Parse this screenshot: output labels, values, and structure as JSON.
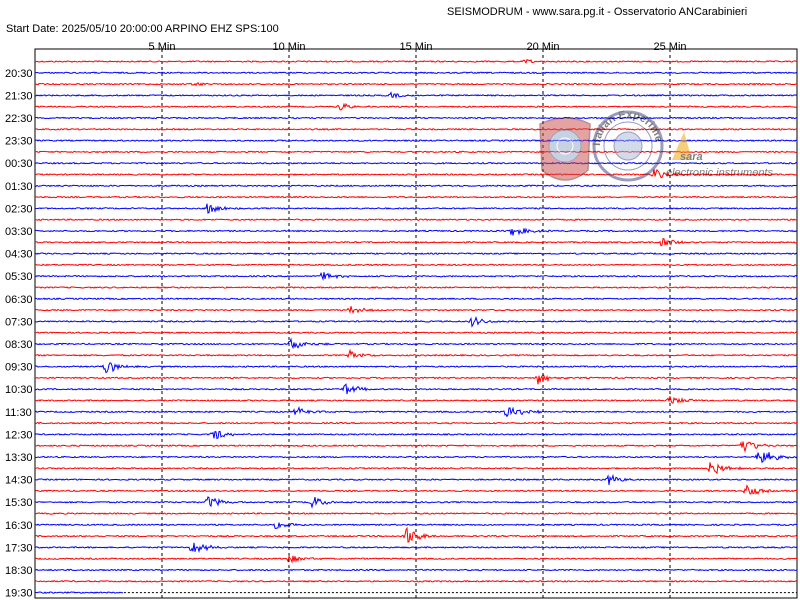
{
  "header": {
    "title": "SEISMODRUM - www.sara.pg.it - Osservatorio ANCarabinieri",
    "start_info": "Start Date: 2025/05/10 20:00:00 ARPINO   EHZ  SPS:100"
  },
  "watermark": {
    "brand": "sara",
    "brand_sub": "electronic instruments",
    "seal_text": "Italian Experimental Seismic Network",
    "brand_color": "#d23a3a"
  },
  "chart_data": {
    "type": "line",
    "x_unit": "minutes",
    "x_range": [
      0,
      30
    ],
    "x_ticks": [
      {
        "value": 5,
        "label": "5 Min"
      },
      {
        "value": 10,
        "label": "10 Min"
      },
      {
        "value": 15,
        "label": "15 Min"
      },
      {
        "value": 20,
        "label": "20 Min"
      },
      {
        "value": 25,
        "label": "25 Min"
      }
    ],
    "row_interval_minutes": 30,
    "current_minute_last_row": 3.5,
    "colors": {
      "red": "#ff0000",
      "blue": "#0000ff",
      "grid": "#000000",
      "paper": "#ffffff"
    },
    "hour_labels": [
      "20:30",
      "21:30",
      "22:30",
      "23:30",
      "00:30",
      "01:30",
      "02:30",
      "03:30",
      "04:30",
      "05:30",
      "06:30",
      "07:30",
      "08:30",
      "09:30",
      "10:30",
      "11:30",
      "12:30",
      "13:30",
      "14:30",
      "15:30",
      "16:30",
      "17:30",
      "18:30",
      "19:30"
    ],
    "traces": [
      {
        "label": null,
        "color": "red"
      },
      {
        "label": "20:30",
        "color": "blue"
      },
      {
        "label": null,
        "color": "red"
      },
      {
        "label": "21:30",
        "color": "blue"
      },
      {
        "label": null,
        "color": "red"
      },
      {
        "label": "22:30",
        "color": "blue"
      },
      {
        "label": null,
        "color": "red"
      },
      {
        "label": "23:30",
        "color": "blue"
      },
      {
        "label": null,
        "color": "red"
      },
      {
        "label": "00:30",
        "color": "blue"
      },
      {
        "label": null,
        "color": "red"
      },
      {
        "label": "01:30",
        "color": "blue"
      },
      {
        "label": null,
        "color": "red"
      },
      {
        "label": "02:30",
        "color": "blue"
      },
      {
        "label": null,
        "color": "red"
      },
      {
        "label": "03:30",
        "color": "blue"
      },
      {
        "label": null,
        "color": "red"
      },
      {
        "label": "04:30",
        "color": "blue"
      },
      {
        "label": null,
        "color": "red"
      },
      {
        "label": "05:30",
        "color": "blue"
      },
      {
        "label": null,
        "color": "red"
      },
      {
        "label": "06:30",
        "color": "blue"
      },
      {
        "label": null,
        "color": "red"
      },
      {
        "label": "07:30",
        "color": "blue"
      },
      {
        "label": null,
        "color": "red"
      },
      {
        "label": "08:30",
        "color": "blue"
      },
      {
        "label": null,
        "color": "red"
      },
      {
        "label": "09:30",
        "color": "blue"
      },
      {
        "label": null,
        "color": "red"
      },
      {
        "label": "10:30",
        "color": "blue"
      },
      {
        "label": null,
        "color": "red"
      },
      {
        "label": "11:30",
        "color": "blue"
      },
      {
        "label": null,
        "color": "red"
      },
      {
        "label": "12:30",
        "color": "blue"
      },
      {
        "label": null,
        "color": "red"
      },
      {
        "label": "13:30",
        "color": "blue"
      },
      {
        "label": null,
        "color": "red"
      },
      {
        "label": "14:30",
        "color": "blue"
      },
      {
        "label": null,
        "color": "red"
      },
      {
        "label": "15:30",
        "color": "blue"
      },
      {
        "label": null,
        "color": "red"
      },
      {
        "label": "16:30",
        "color": "blue"
      },
      {
        "label": null,
        "color": "red"
      },
      {
        "label": "17:30",
        "color": "blue"
      },
      {
        "label": null,
        "color": "red"
      },
      {
        "label": "18:30",
        "color": "blue"
      },
      {
        "label": null,
        "color": "red"
      },
      {
        "label": "19:30",
        "color": "blue"
      }
    ],
    "events": [
      {
        "row": 0,
        "minute": 19.3,
        "amp": 0.5
      },
      {
        "row": 2,
        "minute": 6.2,
        "amp": 0.6
      },
      {
        "row": 3,
        "minute": 14.0,
        "amp": 0.8
      },
      {
        "row": 4,
        "minute": 12.0,
        "amp": 0.9
      },
      {
        "row": 10,
        "minute": 24.4,
        "amp": 1.4
      },
      {
        "row": 13,
        "minute": 6.8,
        "amp": 1.3
      },
      {
        "row": 15,
        "minute": 18.8,
        "amp": 1.4
      },
      {
        "row": 16,
        "minute": 24.7,
        "amp": 1.2
      },
      {
        "row": 19,
        "minute": 11.3,
        "amp": 1.0
      },
      {
        "row": 22,
        "minute": 12.4,
        "amp": 1.0
      },
      {
        "row": 23,
        "minute": 17.2,
        "amp": 1.2
      },
      {
        "row": 25,
        "minute": 10.1,
        "amp": 1.4
      },
      {
        "row": 26,
        "minute": 12.4,
        "amp": 1.0
      },
      {
        "row": 27,
        "minute": 2.8,
        "amp": 1.6
      },
      {
        "row": 28,
        "minute": 19.8,
        "amp": 1.5
      },
      {
        "row": 29,
        "minute": 12.2,
        "amp": 1.4
      },
      {
        "row": 30,
        "minute": 25.0,
        "amp": 1.2
      },
      {
        "row": 31,
        "minute": 10.3,
        "amp": 1.3
      },
      {
        "row": 31,
        "minute": 18.6,
        "amp": 2.6
      },
      {
        "row": 33,
        "minute": 7.0,
        "amp": 1.4
      },
      {
        "row": 34,
        "minute": 27.8,
        "amp": 2.2
      },
      {
        "row": 35,
        "minute": 28.5,
        "amp": 2.4
      },
      {
        "row": 36,
        "minute": 26.6,
        "amp": 1.8
      },
      {
        "row": 37,
        "minute": 22.6,
        "amp": 1.2
      },
      {
        "row": 38,
        "minute": 28.0,
        "amp": 1.8
      },
      {
        "row": 39,
        "minute": 6.8,
        "amp": 1.5
      },
      {
        "row": 39,
        "minute": 10.9,
        "amp": 1.4
      },
      {
        "row": 41,
        "minute": 9.5,
        "amp": 1.0
      },
      {
        "row": 42,
        "minute": 14.6,
        "amp": 2.2
      },
      {
        "row": 43,
        "minute": 6.2,
        "amp": 1.6
      },
      {
        "row": 44,
        "minute": 10.0,
        "amp": 1.0
      }
    ]
  }
}
